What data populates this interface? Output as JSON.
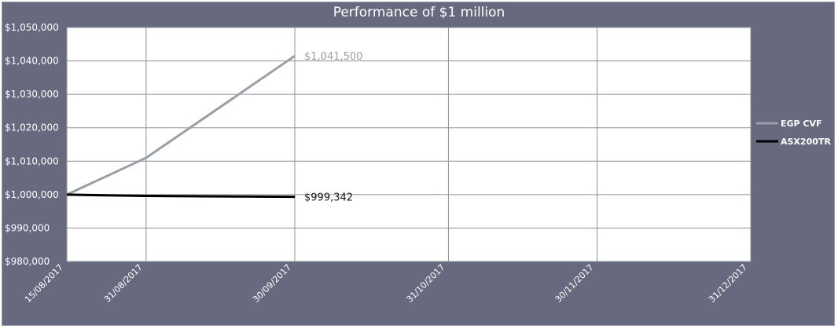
{
  "chart_data": {
    "type": "line",
    "title": "Performance of $1 million",
    "x_ticks": [
      "15/08/2017",
      "31/08/2017",
      "30/09/2017",
      "31/10/2017",
      "30/11/2017",
      "31/12/2017"
    ],
    "y_ticks": [
      "$980,000",
      "$990,000",
      "$1,000,000",
      "$1,010,000",
      "$1,020,000",
      "$1,030,000",
      "$1,040,000",
      "$1,050,000"
    ],
    "ylim": [
      980000,
      1050000
    ],
    "x": [
      "15/08/2017",
      "31/08/2017",
      "30/09/2017"
    ],
    "series": [
      {
        "name": "EGP CVF",
        "color": "#9a9ea6",
        "values": [
          1000000,
          1011000,
          1041500
        ],
        "end_label": "$1,041,500"
      },
      {
        "name": "ASX200TR",
        "color": "#000000",
        "values": [
          1000000,
          999600,
          999342
        ],
        "end_label": "$999,342"
      }
    ],
    "legend_position": "right",
    "grid": true
  }
}
